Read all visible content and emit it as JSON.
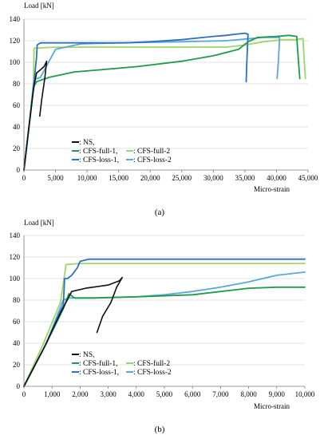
{
  "colors": {
    "NS": "#111111",
    "CFS-full-1": "#1f9a4b",
    "CFS-full-2": "#9dd66b",
    "CFS-loss-1": "#2f6fc0",
    "CFS-loss-2": "#5aa8d8"
  },
  "chart_data": [
    {
      "type": "line",
      "panel_label": "(a)",
      "ylabel": "Load [kN]",
      "xlabel": "Micro-strain",
      "xlim": [
        0,
        45000
      ],
      "ylim": [
        0,
        140
      ],
      "xticks": [
        0,
        5000,
        10000,
        15000,
        20000,
        25000,
        30000,
        35000,
        40000,
        45000
      ],
      "xtick_labels": [
        "0",
        "5,000",
        "10,000",
        "15,000",
        "20,000",
        "25,000",
        "30,000",
        "35,000",
        "40,000",
        "45,000"
      ],
      "yticks": [
        0,
        20,
        40,
        60,
        80,
        100,
        120,
        140
      ],
      "ytick_labels": [
        "0",
        "20",
        "40",
        "60",
        "80",
        "100",
        "120",
        "140"
      ],
      "grid": true,
      "legend": [
        {
          "series": "NS",
          "label": ": NS,"
        },
        {
          "series": "CFS-full-1",
          "label": ": CFS-full-1,"
        },
        {
          "series": "CFS-full-2",
          "label": ": CFS-full-2"
        },
        {
          "series": "CFS-loss-1",
          "label": ": CFS-loss-1,"
        },
        {
          "series": "CFS-loss-2",
          "label": ": CFS-loss-2"
        }
      ],
      "series": [
        {
          "name": "NS",
          "points": [
            [
              0,
              0
            ],
            [
              800,
              40
            ],
            [
              1500,
              75
            ],
            [
              1800,
              84
            ],
            [
              2000,
              90
            ],
            [
              2600,
              93
            ],
            [
              3200,
              96
            ],
            [
              3600,
              101
            ],
            [
              3300,
              85
            ],
            [
              2800,
              65
            ],
            [
              2500,
              50
            ]
          ]
        },
        {
          "name": "CFS-full-1",
          "points": [
            [
              0,
              0
            ],
            [
              800,
              40
            ],
            [
              1400,
              70
            ],
            [
              1600,
              78
            ],
            [
              2000,
              82
            ],
            [
              4000,
              86
            ],
            [
              8000,
              91
            ],
            [
              12000,
              93
            ],
            [
              18000,
              96
            ],
            [
              25000,
              101
            ],
            [
              30000,
              106
            ],
            [
              34000,
              112
            ],
            [
              35500,
              119
            ],
            [
              37000,
              123
            ],
            [
              40000,
              124
            ],
            [
              42000,
              125
            ],
            [
              43200,
              124
            ],
            [
              43500,
              100
            ],
            [
              43700,
              85
            ]
          ]
        },
        {
          "name": "CFS-full-2",
          "points": [
            [
              0,
              0
            ],
            [
              900,
              45
            ],
            [
              1500,
              80
            ],
            [
              1600,
              113
            ],
            [
              5000,
              114
            ],
            [
              15000,
              114
            ],
            [
              25000,
              114
            ],
            [
              32000,
              114
            ],
            [
              35000,
              116
            ],
            [
              38000,
              119
            ],
            [
              41000,
              121
            ],
            [
              43000,
              121
            ],
            [
              44200,
              122
            ],
            [
              44400,
              100
            ],
            [
              44600,
              85
            ]
          ]
        },
        {
          "name": "CFS-loss-1",
          "points": [
            [
              0,
              0
            ],
            [
              800,
              40
            ],
            [
              1500,
              75
            ],
            [
              2000,
              105
            ],
            [
              2100,
              116
            ],
            [
              2600,
              118
            ],
            [
              8000,
              118
            ],
            [
              16000,
              118
            ],
            [
              20000,
              119
            ],
            [
              25000,
              121
            ],
            [
              30000,
              124
            ],
            [
              32000,
              125
            ],
            [
              33500,
              126
            ],
            [
              35000,
              127
            ],
            [
              35500,
              126
            ],
            [
              35300,
              100
            ],
            [
              35200,
              82
            ]
          ]
        },
        {
          "name": "CFS-loss-2",
          "points": [
            [
              0,
              0
            ],
            [
              900,
              45
            ],
            [
              1500,
              80
            ],
            [
              1700,
              84
            ],
            [
              2600,
              86
            ],
            [
              5000,
              112
            ],
            [
              9000,
              117
            ],
            [
              15000,
              118
            ],
            [
              25000,
              119
            ],
            [
              32000,
              120
            ],
            [
              36000,
              122
            ],
            [
              38000,
              123
            ],
            [
              40500,
              123
            ],
            [
              40300,
              100
            ],
            [
              40100,
              85
            ]
          ]
        }
      ]
    },
    {
      "type": "line",
      "panel_label": "(b)",
      "ylabel": "Load [kN]",
      "xlabel": "Micro-strain",
      "xlim": [
        0,
        10000
      ],
      "ylim": [
        0,
        140
      ],
      "xticks": [
        0,
        1000,
        2000,
        3000,
        4000,
        5000,
        6000,
        7000,
        8000,
        9000,
        10000
      ],
      "xtick_labels": [
        "0",
        "1,000",
        "2,000",
        "3,000",
        "4,000",
        "5,000",
        "6,000",
        "7,000",
        "8,000",
        "9,000",
        "10,000"
      ],
      "yticks": [
        0,
        20,
        40,
        60,
        80,
        100,
        120,
        140
      ],
      "ytick_labels": [
        "0",
        "20",
        "40",
        "60",
        "80",
        "100",
        "120",
        "140"
      ],
      "grid": true,
      "legend": [
        {
          "series": "NS",
          "label": ": NS,"
        },
        {
          "series": "CFS-full-1",
          "label": ": CFS-full-1,"
        },
        {
          "series": "CFS-full-2",
          "label": ": CFS-full-2"
        },
        {
          "series": "CFS-loss-1",
          "label": ": CFS-loss-1,"
        },
        {
          "series": "CFS-loss-2",
          "label": ": CFS-loss-2"
        }
      ],
      "series": [
        {
          "name": "NS",
          "points": [
            [
              0,
              0
            ],
            [
              700,
              35
            ],
            [
              1300,
              68
            ],
            [
              1500,
              78
            ],
            [
              1700,
              88
            ],
            [
              2200,
              91
            ],
            [
              3000,
              94
            ],
            [
              3400,
              98
            ],
            [
              3500,
              101
            ],
            [
              3300,
              92
            ],
            [
              3100,
              78
            ],
            [
              2800,
              65
            ],
            [
              2600,
              50
            ]
          ]
        },
        {
          "name": "CFS-full-1",
          "points": [
            [
              0,
              0
            ],
            [
              800,
              40
            ],
            [
              1400,
              72
            ],
            [
              1500,
              79
            ],
            [
              1600,
              86
            ],
            [
              1700,
              84
            ],
            [
              1800,
              82
            ],
            [
              2500,
              82
            ],
            [
              4000,
              83
            ],
            [
              6000,
              85
            ],
            [
              8000,
              91
            ],
            [
              9000,
              92
            ],
            [
              10000,
              92
            ]
          ]
        },
        {
          "name": "CFS-full-2",
          "points": [
            [
              0,
              0
            ],
            [
              700,
              40
            ],
            [
              1300,
              78
            ],
            [
              1500,
              113
            ],
            [
              2000,
              114
            ],
            [
              4000,
              114
            ],
            [
              6000,
              114
            ],
            [
              8000,
              114
            ],
            [
              10000,
              114
            ]
          ]
        },
        {
          "name": "CFS-loss-1",
          "points": [
            [
              0,
              0
            ],
            [
              800,
              40
            ],
            [
              1300,
              70
            ],
            [
              1400,
              75
            ],
            [
              1450,
              100
            ],
            [
              1550,
              100
            ],
            [
              1700,
              103
            ],
            [
              1900,
              110
            ],
            [
              2000,
              116
            ],
            [
              2300,
              118
            ],
            [
              4000,
              118
            ],
            [
              6000,
              118
            ],
            [
              8000,
              118
            ],
            [
              10000,
              118
            ]
          ]
        },
        {
          "name": "CFS-loss-2",
          "points": [
            [
              0,
              0
            ],
            [
              800,
              40
            ],
            [
              1400,
              80
            ],
            [
              1600,
              82
            ],
            [
              2500,
              82
            ],
            [
              4000,
              83
            ],
            [
              5000,
              85
            ],
            [
              6000,
              88
            ],
            [
              7000,
              92
            ],
            [
              8000,
              97
            ],
            [
              9000,
              103
            ],
            [
              10000,
              106
            ]
          ]
        }
      ]
    }
  ]
}
